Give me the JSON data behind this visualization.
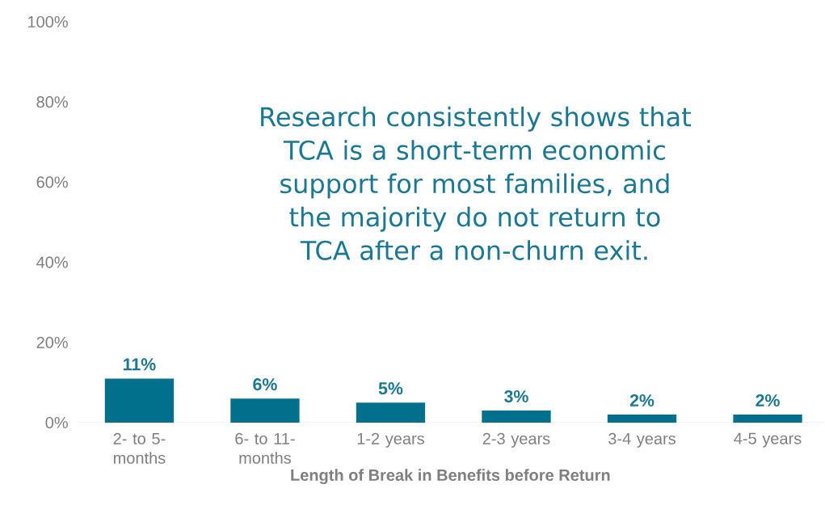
{
  "chart_data": {
    "type": "bar",
    "xlabel": "Length of Break in Benefits before Return",
    "categories": [
      "2- to 5- months",
      "6- to 11- months",
      "1-2 years",
      "2-3 years",
      "3-4 years",
      "4-5 years"
    ],
    "values": [
      11,
      6,
      5,
      3,
      2,
      2
    ],
    "value_labels": [
      "11%",
      "6%",
      "5%",
      "3%",
      "2%",
      "2%"
    ],
    "color": "#00708c",
    "ylim": [
      0,
      100
    ],
    "yticks": [
      {
        "value": 0,
        "label": "0%"
      },
      {
        "value": 20,
        "label": "20%"
      },
      {
        "value": 40,
        "label": "40%"
      },
      {
        "value": 60,
        "label": "60%"
      },
      {
        "value": 80,
        "label": "80%"
      },
      {
        "value": 100,
        "label": "100%"
      }
    ],
    "grid": false,
    "annotations": [
      "Research consistently shows that TCA is a short-term economic support for most families, and the majority do not return to TCA after a non-churn exit."
    ]
  }
}
